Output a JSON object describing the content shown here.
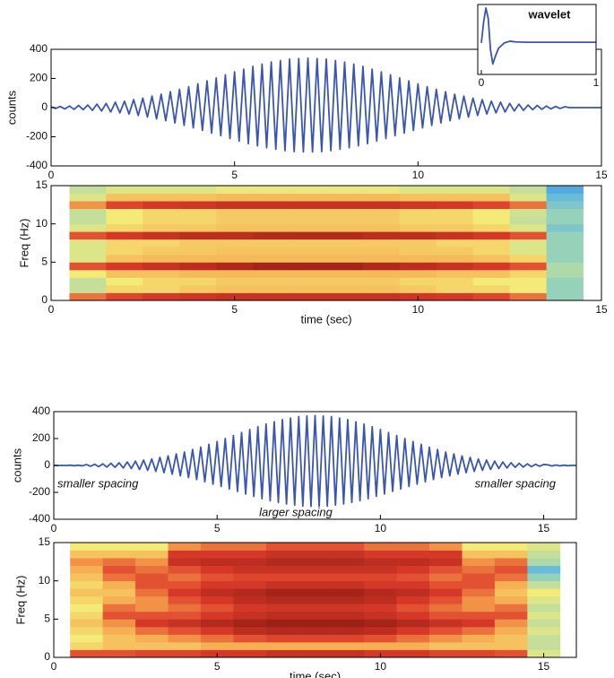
{
  "chart_data": [
    {
      "type": "line",
      "ylabel": "counts",
      "color": "#3a56b0",
      "xlim": [
        0,
        15
      ],
      "ylim": [
        -400,
        400
      ],
      "xticks": [
        0,
        5,
        10,
        15
      ],
      "yticks": [
        -400,
        -200,
        0,
        200,
        400
      ],
      "x": [
        0,
        0.125,
        0.25,
        0.375,
        0.5,
        0.625,
        0.75,
        0.875,
        1,
        1.125,
        1.25,
        1.375,
        1.5,
        1.625,
        1.75,
        1.875,
        2,
        2.125,
        2.25,
        2.375,
        2.5,
        2.625,
        2.75,
        2.875,
        3,
        3.125,
        3.25,
        3.375,
        3.5,
        3.625,
        3.75,
        3.875,
        4,
        4.125,
        4.25,
        4.375,
        4.5,
        4.625,
        4.75,
        4.875,
        5,
        5.125,
        5.25,
        5.375,
        5.5,
        5.625,
        5.75,
        5.875,
        6,
        6.125,
        6.25,
        6.375,
        6.5,
        6.625,
        6.75,
        6.875,
        7,
        7.125,
        7.25,
        7.375,
        7.5,
        7.625,
        7.75,
        7.875,
        8,
        8.125,
        8.25,
        8.375,
        8.5,
        8.625,
        8.75,
        8.875,
        9,
        9.125,
        9.25,
        9.375,
        9.5,
        9.625,
        9.75,
        9.875,
        10,
        10.125,
        10.25,
        10.375,
        10.5,
        10.625,
        10.75,
        10.875,
        11,
        11.125,
        11.25,
        11.375,
        11.5,
        11.625,
        11.75,
        11.875,
        12,
        12.125,
        12.25,
        12.375,
        12.5,
        12.625,
        12.75,
        12.875,
        13,
        13.125,
        13.25,
        13.375,
        13.5,
        13.625,
        13.75,
        13.875,
        14,
        14.125,
        14.25,
        14.375,
        14.5,
        14.625,
        14.75,
        14.875,
        15
      ],
      "values": [
        6,
        -6,
        8,
        -9,
        11,
        -12,
        15,
        -14,
        18,
        -19,
        24,
        -23,
        29,
        -30,
        37,
        -36,
        44,
        -44,
        55,
        -54,
        65,
        -65,
        79,
        -77,
        92,
        -90,
        109,
        -105,
        125,
        -122,
        144,
        -139,
        163,
        -156,
        184,
        -175,
        204,
        -193,
        225,
        -212,
        245,
        -230,
        264,
        -247,
        283,
        -262,
        298,
        -275,
        313,
        -286,
        323,
        -295,
        333,
        -302,
        337,
        -304,
        340,
        -304,
        337,
        -302,
        333,
        -295,
        323,
        -286,
        313,
        -275,
        298,
        -262,
        283,
        -247,
        264,
        -230,
        245,
        -212,
        225,
        -193,
        204,
        -175,
        184,
        -156,
        163,
        -139,
        144,
        -122,
        125,
        -105,
        109,
        -90,
        92,
        -77,
        79,
        -65,
        65,
        -54,
        55,
        -44,
        44,
        -36,
        37,
        -30,
        29,
        -23,
        24,
        -19,
        18,
        -14,
        15,
        -12,
        11,
        -9,
        8,
        -6,
        6,
        0,
        0,
        0,
        0,
        0,
        0,
        0,
        0
      ]
    },
    {
      "type": "line",
      "title": "wavelet",
      "color": "#3a56b0",
      "xlim": [
        0,
        1
      ],
      "ylim": [
        -0.9,
        1.1
      ],
      "xticks": [
        0,
        1
      ],
      "x": [
        0,
        0.02,
        0.04,
        0.06,
        0.08,
        0.1,
        0.12,
        0.15,
        0.2,
        0.25,
        0.3,
        0.4,
        0.6,
        0.8,
        1
      ],
      "values": [
        0,
        0.6,
        1,
        0.7,
        -0.2,
        -0.6,
        -0.4,
        -0.15,
        0,
        0.05,
        0.03,
        0.02,
        0.02,
        0.02,
        0.02
      ]
    },
    {
      "type": "heatmap",
      "xlabel": "time (sec)",
      "ylabel": "Freq (Hz)",
      "xlim": [
        0,
        15
      ],
      "ylim": [
        0,
        15
      ],
      "xticks": [
        0,
        5,
        10,
        15
      ],
      "yticks": [
        0,
        5,
        10,
        15
      ],
      "colorscale": [
        "#2b4fa8",
        "#58b4e4",
        "#a6d8b0",
        "#f4ea78",
        "#f6a84e",
        "#dd3b2a",
        "#8c1a12"
      ],
      "x": [
        1,
        2,
        3,
        4,
        5,
        6,
        7,
        8,
        9,
        10,
        11,
        12,
        13,
        14
      ],
      "y": [
        0.5,
        1.5,
        2.5,
        3.5,
        4.5,
        5.5,
        6.5,
        7.5,
        8.5,
        9.5,
        10.5,
        11.5,
        12.5,
        13.5,
        14.5
      ],
      "values": [
        [
          0.75,
          0.4,
          0.4,
          0.5,
          0.8,
          0.45,
          0.45,
          0.45,
          0.8,
          0.45,
          0.4,
          0.4,
          0.7,
          0.45,
          0.4
        ],
        [
          0.82,
          0.55,
          0.5,
          0.6,
          0.85,
          0.6,
          0.55,
          0.55,
          0.85,
          0.55,
          0.5,
          0.5,
          0.82,
          0.6,
          0.45
        ],
        [
          0.85,
          0.55,
          0.55,
          0.6,
          0.88,
          0.62,
          0.58,
          0.55,
          0.88,
          0.58,
          0.55,
          0.55,
          0.85,
          0.6,
          0.45
        ],
        [
          0.86,
          0.58,
          0.55,
          0.62,
          0.9,
          0.62,
          0.58,
          0.58,
          0.9,
          0.58,
          0.55,
          0.55,
          0.86,
          0.6,
          0.45
        ],
        [
          0.88,
          0.6,
          0.58,
          0.62,
          0.93,
          0.62,
          0.6,
          0.58,
          0.9,
          0.6,
          0.58,
          0.58,
          0.88,
          0.62,
          0.48
        ],
        [
          0.88,
          0.6,
          0.58,
          0.62,
          0.95,
          0.62,
          0.6,
          0.58,
          0.92,
          0.6,
          0.58,
          0.58,
          0.88,
          0.62,
          0.48
        ],
        [
          0.88,
          0.6,
          0.58,
          0.62,
          0.95,
          0.62,
          0.6,
          0.58,
          0.92,
          0.6,
          0.58,
          0.58,
          0.88,
          0.62,
          0.48
        ],
        [
          0.88,
          0.6,
          0.58,
          0.62,
          0.95,
          0.62,
          0.6,
          0.58,
          0.92,
          0.6,
          0.58,
          0.58,
          0.88,
          0.62,
          0.48
        ],
        [
          0.88,
          0.6,
          0.58,
          0.62,
          0.93,
          0.62,
          0.6,
          0.58,
          0.9,
          0.6,
          0.58,
          0.58,
          0.88,
          0.62,
          0.48
        ],
        [
          0.86,
          0.58,
          0.55,
          0.62,
          0.9,
          0.62,
          0.58,
          0.58,
          0.9,
          0.58,
          0.55,
          0.55,
          0.86,
          0.6,
          0.45
        ],
        [
          0.85,
          0.55,
          0.55,
          0.6,
          0.88,
          0.62,
          0.58,
          0.55,
          0.88,
          0.58,
          0.55,
          0.55,
          0.85,
          0.6,
          0.45
        ],
        [
          0.82,
          0.55,
          0.5,
          0.6,
          0.85,
          0.6,
          0.55,
          0.55,
          0.85,
          0.55,
          0.5,
          0.5,
          0.82,
          0.6,
          0.45
        ],
        [
          0.75,
          0.5,
          0.5,
          0.55,
          0.8,
          0.55,
          0.45,
          0.45,
          0.8,
          0.45,
          0.4,
          0.42,
          0.75,
          0.45,
          0.4
        ],
        [
          0.3,
          0.3,
          0.3,
          0.35,
          0.35,
          0.3,
          0.3,
          0.3,
          0.3,
          0.25,
          0.3,
          0.3,
          0.25,
          0.2,
          0.15
        ]
      ]
    },
    {
      "type": "line",
      "ylabel": "counts",
      "color": "#3a56b0",
      "xlim": [
        0,
        16
      ],
      "ylim": [
        -400,
        400
      ],
      "xticks": [
        0,
        5,
        10,
        15
      ],
      "yticks": [
        -400,
        -200,
        0,
        200,
        400
      ],
      "annotations": [
        "smaller spacing",
        "larger spacing",
        "smaller spacing"
      ],
      "x": [
        0,
        0.125,
        0.25,
        0.375,
        0.5,
        0.625,
        0.75,
        0.875,
        1,
        1.125,
        1.25,
        1.375,
        1.5,
        1.625,
        1.75,
        1.875,
        2,
        2.125,
        2.25,
        2.375,
        2.5,
        2.625,
        2.75,
        2.875,
        3,
        3.125,
        3.25,
        3.375,
        3.5,
        3.625,
        3.75,
        3.875,
        4,
        4.125,
        4.25,
        4.375,
        4.5,
        4.625,
        4.75,
        4.875,
        5,
        5.125,
        5.25,
        5.375,
        5.5,
        5.625,
        5.75,
        5.875,
        6,
        6.125,
        6.25,
        6.375,
        6.5,
        6.625,
        6.75,
        6.875,
        7,
        7.125,
        7.25,
        7.375,
        7.5,
        7.625,
        7.75,
        7.875,
        8,
        8.125,
        8.25,
        8.375,
        8.5,
        8.625,
        8.75,
        8.875,
        9,
        9.125,
        9.25,
        9.375,
        9.5,
        9.625,
        9.75,
        9.875,
        10,
        10.125,
        10.25,
        10.375,
        10.5,
        10.625,
        10.75,
        10.875,
        11,
        11.125,
        11.25,
        11.375,
        11.5,
        11.625,
        11.75,
        11.875,
        12,
        12.125,
        12.25,
        12.375,
        12.5,
        12.625,
        12.75,
        12.875,
        13,
        13.125,
        13.25,
        13.375,
        13.5,
        13.625,
        13.75,
        13.875,
        14,
        14.125,
        14.25,
        14.375,
        14.5,
        14.625,
        14.75,
        14.875,
        15,
        15.125,
        15.25,
        15.375,
        15.5,
        15.625,
        15.75,
        15.875,
        16
      ],
      "values": [
        1,
        -1,
        1,
        -1,
        2,
        -2,
        2,
        -3,
        7,
        -6,
        9,
        -9,
        12,
        -12,
        16,
        -14,
        20,
        -19,
        26,
        -23,
        32,
        -30,
        40,
        -36,
        48,
        -44,
        60,
        -54,
        71,
        -65,
        86,
        -77,
        100,
        -90,
        119,
        -105,
        136,
        -122,
        157,
        -139,
        178,
        -156,
        201,
        -175,
        222,
        -193,
        245,
        -212,
        267,
        -230,
        288,
        -247,
        308,
        -262,
        325,
        -275,
        341,
        -286,
        352,
        -295,
        363,
        -302,
        367,
        -304,
        371,
        -304,
        367,
        -302,
        363,
        -295,
        352,
        -286,
        341,
        -275,
        325,
        -262,
        308,
        -247,
        288,
        -230,
        267,
        -212,
        245,
        -193,
        222,
        -175,
        201,
        -156,
        178,
        -139,
        157,
        -122,
        136,
        -105,
        119,
        -90,
        100,
        -77,
        86,
        -65,
        71,
        -54,
        60,
        -44,
        48,
        -36,
        40,
        -30,
        32,
        -23,
        26,
        -19,
        20,
        -14,
        16,
        -12,
        12,
        -9,
        9,
        -6,
        7,
        5,
        -4,
        3,
        -3,
        2,
        -2,
        1,
        0
      ]
    },
    {
      "type": "heatmap",
      "xlabel": "time (sec)",
      "ylabel": "Freq (Hz)",
      "xlim": [
        0,
        16
      ],
      "ylim": [
        0,
        15
      ],
      "xticks": [
        0,
        5,
        10,
        15
      ],
      "yticks": [
        0,
        5,
        10,
        15
      ],
      "colorscale": [
        "#2b4fa8",
        "#58b4e4",
        "#a6d8b0",
        "#f4ea78",
        "#f6a84e",
        "#dd3b2a",
        "#8c1a12"
      ],
      "x": [
        1,
        2,
        3,
        4,
        5,
        6,
        7,
        8,
        9,
        10,
        11,
        12,
        13,
        14,
        15
      ],
      "y": [
        0.5,
        1.5,
        2.5,
        3.5,
        4.5,
        5.5,
        6.5,
        7.5,
        8.5,
        9.5,
        10.5,
        11.5,
        12.5,
        13.5,
        14.5
      ],
      "values": [
        [
          0.8,
          0.55,
          0.5,
          0.55,
          0.6,
          0.55,
          0.5,
          0.55,
          0.6,
          0.55,
          0.6,
          0.65,
          0.7,
          0.6,
          0.5
        ],
        [
          0.8,
          0.6,
          0.6,
          0.65,
          0.7,
          0.8,
          0.75,
          0.65,
          0.6,
          0.65,
          0.75,
          0.8,
          0.75,
          0.6,
          0.5
        ],
        [
          0.82,
          0.6,
          0.65,
          0.75,
          0.85,
          0.8,
          0.7,
          0.7,
          0.75,
          0.8,
          0.8,
          0.75,
          0.7,
          0.6,
          0.5
        ],
        [
          0.82,
          0.6,
          0.7,
          0.8,
          0.88,
          0.8,
          0.75,
          0.8,
          0.85,
          0.8,
          0.75,
          0.8,
          0.88,
          0.85,
          0.7
        ],
        [
          0.85,
          0.65,
          0.75,
          0.85,
          0.92,
          0.85,
          0.8,
          0.85,
          0.9,
          0.85,
          0.8,
          0.85,
          0.9,
          0.85,
          0.75
        ],
        [
          0.85,
          0.65,
          0.8,
          0.9,
          0.95,
          0.88,
          0.85,
          0.9,
          0.92,
          0.85,
          0.82,
          0.88,
          0.9,
          0.85,
          0.75
        ],
        [
          0.88,
          0.65,
          0.82,
          0.92,
          0.97,
          0.9,
          0.86,
          0.92,
          0.95,
          0.88,
          0.82,
          0.88,
          0.92,
          0.88,
          0.8
        ],
        [
          0.88,
          0.65,
          0.82,
          0.92,
          0.97,
          0.9,
          0.86,
          0.92,
          0.95,
          0.88,
          0.82,
          0.88,
          0.92,
          0.88,
          0.8
        ],
        [
          0.88,
          0.65,
          0.82,
          0.92,
          0.97,
          0.9,
          0.86,
          0.92,
          0.95,
          0.88,
          0.82,
          0.88,
          0.92,
          0.88,
          0.8
        ],
        [
          0.85,
          0.65,
          0.8,
          0.9,
          0.95,
          0.88,
          0.85,
          0.9,
          0.92,
          0.85,
          0.82,
          0.88,
          0.9,
          0.85,
          0.75
        ],
        [
          0.85,
          0.65,
          0.75,
          0.85,
          0.92,
          0.85,
          0.8,
          0.85,
          0.9,
          0.85,
          0.8,
          0.85,
          0.9,
          0.85,
          0.75
        ],
        [
          0.82,
          0.6,
          0.7,
          0.8,
          0.88,
          0.8,
          0.75,
          0.8,
          0.85,
          0.8,
          0.75,
          0.8,
          0.88,
          0.85,
          0.7
        ],
        [
          0.82,
          0.6,
          0.65,
          0.75,
          0.85,
          0.8,
          0.7,
          0.7,
          0.75,
          0.8,
          0.8,
          0.75,
          0.7,
          0.6,
          0.5
        ],
        [
          0.8,
          0.6,
          0.6,
          0.65,
          0.7,
          0.8,
          0.75,
          0.65,
          0.6,
          0.65,
          0.75,
          0.8,
          0.75,
          0.6,
          0.5
        ],
        [
          0.45,
          0.4,
          0.4,
          0.45,
          0.4,
          0.45,
          0.4,
          0.45,
          0.5,
          0.4,
          0.3,
          0.2,
          0.35,
          0.4,
          0.45
        ]
      ]
    }
  ]
}
